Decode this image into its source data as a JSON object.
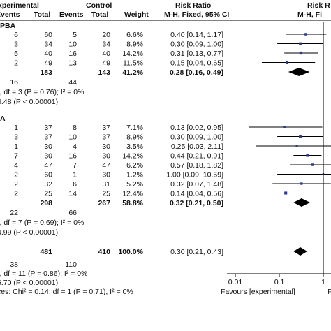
{
  "chart_data": {
    "type": "forest",
    "header": {
      "group1": "Experimental",
      "group2": "Control",
      "cols": [
        "Events",
        "Total",
        "Events",
        "Total",
        "Weight"
      ],
      "rr_title": "Risk Ratio",
      "rr_method": "M-H, Fixed, 95% CI",
      "rr_title_right": "Risk R",
      "rr_method_right": "M-H, Fi"
    },
    "subgroups": [
      {
        "label": "PBA",
        "studies": [
          {
            "e1": "6",
            "n1": "60",
            "e2": "5",
            "n2": "20",
            "weight": "6.6%",
            "ci_text": "0.40 [0.14, 1.17]",
            "rr": 0.4,
            "lo": 0.14,
            "hi": 1.17
          },
          {
            "e1": "3",
            "n1": "34",
            "e2": "10",
            "n2": "34",
            "weight": "8.9%",
            "ci_text": "0.30 [0.09, 1.00]",
            "rr": 0.3,
            "lo": 0.09,
            "hi": 1.0
          },
          {
            "e1": "5",
            "n1": "40",
            "e2": "16",
            "n2": "40",
            "weight": "14.2%",
            "ci_text": "0.31 [0.13, 0.77]",
            "rr": 0.31,
            "lo": 0.13,
            "hi": 0.77
          },
          {
            "e1": "2",
            "n1": "49",
            "e2": "13",
            "n2": "49",
            "weight": "11.5%",
            "ci_text": "0.15 [0.04, 0.65]",
            "rr": 0.15,
            "lo": 0.04,
            "hi": 0.65
          }
        ],
        "subtotal": {
          "n1": "183",
          "n2": "143",
          "weight": "41.2%",
          "ci_text": "0.28 [0.16, 0.49]",
          "rr": 0.28,
          "lo": 0.16,
          "hi": 0.49
        },
        "total_events": {
          "e1": "16",
          "e2": "44"
        },
        "heterogeneity": "², df = 3 (P = 0.76); I² = 0%",
        "overall_effect": "4.48 (P < 0.00001)"
      },
      {
        "label": "A",
        "studies": [
          {
            "e1": "1",
            "n1": "37",
            "e2": "8",
            "n2": "37",
            "weight": "7.1%",
            "ci_text": "0.13 [0.02, 0.95]",
            "rr": 0.13,
            "lo": 0.02,
            "hi": 0.95
          },
          {
            "e1": "3",
            "n1": "37",
            "e2": "10",
            "n2": "37",
            "weight": "8.9%",
            "ci_text": "0.30 [0.09, 1.00]",
            "rr": 0.3,
            "lo": 0.09,
            "hi": 1.0
          },
          {
            "e1": "1",
            "n1": "30",
            "e2": "4",
            "n2": "30",
            "weight": "3.5%",
            "ci_text": "0.25 [0.03, 2.11]",
            "rr": 0.25,
            "lo": 0.03,
            "hi": 2.11
          },
          {
            "e1": "7",
            "n1": "30",
            "e2": "16",
            "n2": "30",
            "weight": "14.2%",
            "ci_text": "0.44 [0.21, 0.91]",
            "rr": 0.44,
            "lo": 0.21,
            "hi": 0.91
          },
          {
            "e1": "4",
            "n1": "47",
            "e2": "7",
            "n2": "47",
            "weight": "6.2%",
            "ci_text": "0.57 [0.18, 1.82]",
            "rr": 0.57,
            "lo": 0.18,
            "hi": 1.82
          },
          {
            "e1": "2",
            "n1": "60",
            "e2": "1",
            "n2": "30",
            "weight": "1.2%",
            "ci_text": "1.00 [0.09, 10.59]",
            "rr": 1.0,
            "lo": 0.09,
            "hi": 10.59
          },
          {
            "e1": "2",
            "n1": "32",
            "e2": "6",
            "n2": "31",
            "weight": "5.2%",
            "ci_text": "0.32 [0.07, 1.48]",
            "rr": 0.32,
            "lo": 0.07,
            "hi": 1.48
          },
          {
            "e1": "2",
            "n1": "25",
            "e2": "14",
            "n2": "25",
            "weight": "12.4%",
            "ci_text": "0.14 [0.04, 0.56]",
            "rr": 0.14,
            "lo": 0.04,
            "hi": 0.56
          }
        ],
        "subtotal": {
          "n1": "298",
          "n2": "267",
          "weight": "58.8%",
          "ci_text": "0.32 [0.21, 0.50]",
          "rr": 0.32,
          "lo": 0.21,
          "hi": 0.5
        },
        "total_events": {
          "e1": "22",
          "e2": "66"
        },
        "heterogeneity": "², df = 7 (P = 0.69); I² = 0%",
        "overall_effect": "4.99 (P < 0.00001)"
      }
    ],
    "total": {
      "n1": "481",
      "n2": "410",
      "weight": "100.0%",
      "ci_text": "0.30 [0.21, 0.43]",
      "rr": 0.3,
      "lo": 0.21,
      "hi": 0.43
    },
    "total_events": {
      "e1": "38",
      "e2": "110"
    },
    "total_heterogeneity": "², df = 11 (P = 0.86); I² = 0%",
    "total_effect": "6.70 (P < 0.00001)",
    "subgroup_diff": "ces: Chi² = 0.14, df = 1 (P = 0.71), I² = 0%",
    "x_axis": {
      "scale": "log",
      "ticks": [
        0.01,
        0.1,
        1
      ],
      "tick_labels": [
        "0.01",
        "0.1",
        "1"
      ],
      "range": [
        0.01,
        1
      ]
    },
    "favours_left": "Favours [experimental]",
    "favours_right": "F"
  }
}
